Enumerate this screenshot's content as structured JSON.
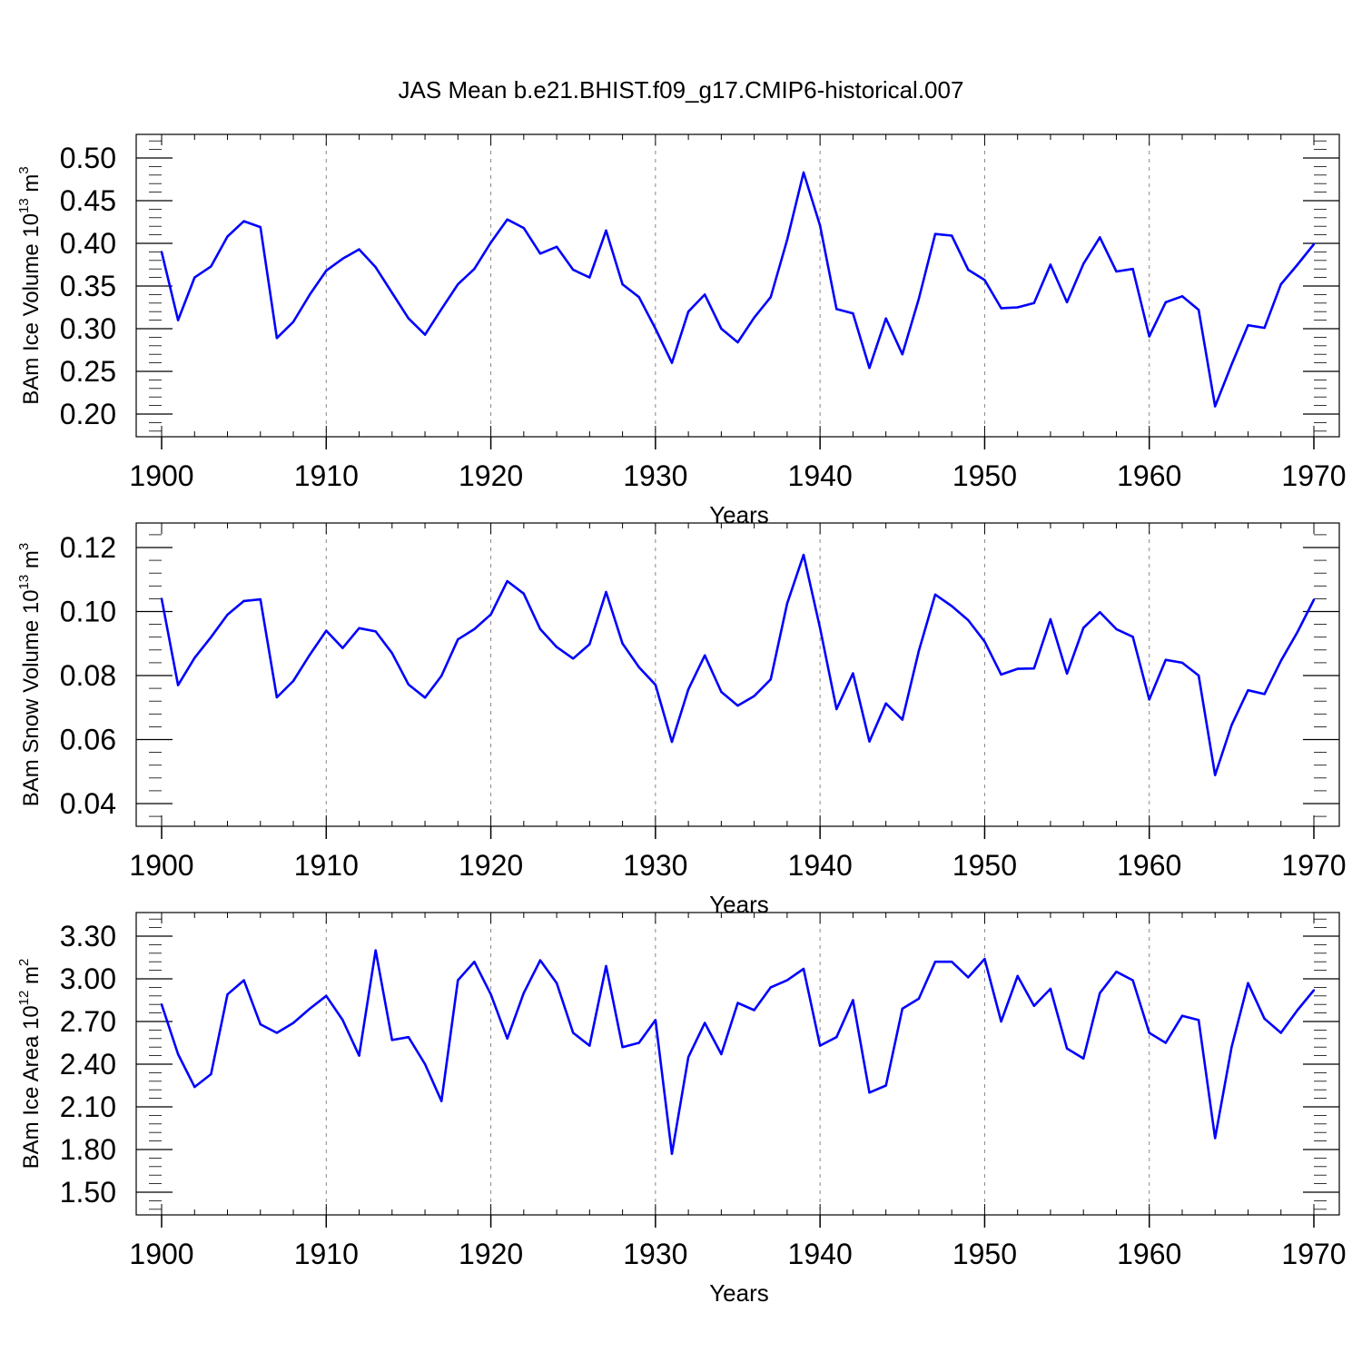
{
  "title": "JAS Mean b.e21.BHIST.f09_g17.CMIP6-historical.007",
  "line_color": "#0000ff",
  "chart_data": [
    {
      "type": "line",
      "ylabel": "BAm Ice Volume 10",
      "ylabel_sup": "13",
      "ylabel_unit": " m",
      "ylabel_unit_sup": "3",
      "xlabel": "Years",
      "xlim": [
        1900,
        1970
      ],
      "ylim": [
        0.2,
        0.5
      ],
      "yticks": [
        "0.20",
        "0.25",
        "0.30",
        "0.35",
        "0.40",
        "0.45",
        "0.50"
      ],
      "xticks": [
        "1900",
        "1910",
        "1920",
        "1930",
        "1940",
        "1950",
        "1960",
        "1970"
      ],
      "grid": "vertical dashed at decades",
      "x": [
        1900,
        1901,
        1902,
        1903,
        1904,
        1905,
        1906,
        1907,
        1908,
        1909,
        1910,
        1911,
        1912,
        1913,
        1914,
        1915,
        1916,
        1917,
        1918,
        1919,
        1920,
        1921,
        1922,
        1923,
        1924,
        1925,
        1926,
        1927,
        1928,
        1929,
        1930,
        1931,
        1932,
        1933,
        1934,
        1935,
        1936,
        1937,
        1938,
        1939,
        1940,
        1941,
        1942,
        1943,
        1944,
        1945,
        1946,
        1947,
        1948,
        1949,
        1950,
        1951,
        1952,
        1953,
        1954,
        1955,
        1956,
        1957,
        1958,
        1959,
        1960,
        1961,
        1962,
        1963,
        1964,
        1965,
        1966,
        1967,
        1968,
        1969,
        1970
      ],
      "values": [
        0.39,
        0.31,
        0.36,
        0.373,
        0.408,
        0.426,
        0.419,
        0.289,
        0.308,
        0.34,
        0.368,
        0.382,
        0.393,
        0.372,
        0.342,
        0.312,
        0.293,
        0.323,
        0.352,
        0.37,
        0.401,
        0.428,
        0.418,
        0.388,
        0.396,
        0.369,
        0.36,
        0.415,
        0.352,
        0.337,
        0.3,
        0.26,
        0.32,
        0.34,
        0.3,
        0.284,
        0.313,
        0.337,
        0.404,
        0.483,
        0.421,
        0.323,
        0.318,
        0.254,
        0.312,
        0.27,
        0.335,
        0.411,
        0.409,
        0.369,
        0.357,
        0.324,
        0.325,
        0.33,
        0.375,
        0.331,
        0.376,
        0.407,
        0.367,
        0.37,
        0.291,
        0.331,
        0.338,
        0.322,
        0.209,
        0.258,
        0.304,
        0.301,
        0.352,
        0.375,
        0.399
      ]
    },
    {
      "type": "line",
      "ylabel": "BAm Snow Volume 10",
      "ylabel_sup": "13",
      "ylabel_unit": " m",
      "ylabel_unit_sup": "3",
      "xlabel": "Years",
      "xlim": [
        1900,
        1970
      ],
      "ylim": [
        0.04,
        0.12
      ],
      "yticks": [
        "0.04",
        "0.06",
        "0.08",
        "0.10",
        "0.12"
      ],
      "xticks": [
        "1900",
        "1910",
        "1920",
        "1930",
        "1940",
        "1950",
        "1960",
        "1970"
      ],
      "grid": "vertical dashed at decades",
      "x": [
        1900,
        1901,
        1902,
        1903,
        1904,
        1905,
        1906,
        1907,
        1908,
        1909,
        1910,
        1911,
        1912,
        1913,
        1914,
        1915,
        1916,
        1917,
        1918,
        1919,
        1920,
        1921,
        1922,
        1923,
        1924,
        1925,
        1926,
        1927,
        1928,
        1929,
        1930,
        1931,
        1932,
        1933,
        1934,
        1935,
        1936,
        1937,
        1938,
        1939,
        1940,
        1941,
        1942,
        1943,
        1944,
        1945,
        1946,
        1947,
        1948,
        1949,
        1950,
        1951,
        1952,
        1953,
        1954,
        1955,
        1956,
        1957,
        1958,
        1959,
        1960,
        1961,
        1962,
        1963,
        1964,
        1965,
        1966,
        1967,
        1968,
        1969,
        1970
      ],
      "values": [
        0.104,
        0.077,
        0.0855,
        0.092,
        0.099,
        0.1033,
        0.1038,
        0.0732,
        0.0783,
        0.0865,
        0.094,
        0.0886,
        0.0948,
        0.0938,
        0.087,
        0.0772,
        0.0731,
        0.0799,
        0.0913,
        0.0945,
        0.0991,
        0.1095,
        0.1056,
        0.0945,
        0.0889,
        0.0853,
        0.0898,
        0.1061,
        0.09,
        0.0826,
        0.0771,
        0.0593,
        0.0757,
        0.0863,
        0.0749,
        0.0706,
        0.0736,
        0.0788,
        0.1025,
        0.1177,
        0.0949,
        0.0695,
        0.0807,
        0.0594,
        0.0713,
        0.0662,
        0.0877,
        0.1053,
        0.1017,
        0.0973,
        0.0906,
        0.0803,
        0.0821,
        0.0822,
        0.0976,
        0.0806,
        0.0949,
        0.0998,
        0.0945,
        0.0921,
        0.0725,
        0.0849,
        0.084,
        0.08,
        0.0489,
        0.0645,
        0.0754,
        0.0742,
        0.0846,
        0.0936,
        0.1037
      ]
    },
    {
      "type": "line",
      "ylabel": "BAm Ice Area 10",
      "ylabel_sup": "12",
      "ylabel_unit": " m",
      "ylabel_unit_sup": "2",
      "xlabel": "Years",
      "xlim": [
        1900,
        1970
      ],
      "ylim": [
        1.5,
        3.3
      ],
      "yticks": [
        "1.50",
        "1.80",
        "2.10",
        "2.40",
        "2.70",
        "3.00",
        "3.30"
      ],
      "xticks": [
        "1900",
        "1910",
        "1920",
        "1930",
        "1940",
        "1950",
        "1960",
        "1970"
      ],
      "grid": "vertical dashed at decades",
      "x": [
        1900,
        1901,
        1902,
        1903,
        1904,
        1905,
        1906,
        1907,
        1908,
        1909,
        1910,
        1911,
        1912,
        1913,
        1914,
        1915,
        1916,
        1917,
        1918,
        1919,
        1920,
        1921,
        1922,
        1923,
        1924,
        1925,
        1926,
        1927,
        1928,
        1929,
        1930,
        1931,
        1932,
        1933,
        1934,
        1935,
        1936,
        1937,
        1938,
        1939,
        1940,
        1941,
        1942,
        1943,
        1944,
        1945,
        1946,
        1947,
        1948,
        1949,
        1950,
        1951,
        1952,
        1953,
        1954,
        1955,
        1956,
        1957,
        1958,
        1959,
        1960,
        1961,
        1962,
        1963,
        1964,
        1965,
        1966,
        1967,
        1968,
        1969,
        1970
      ],
      "values": [
        2.82,
        2.47,
        2.24,
        2.33,
        2.89,
        2.99,
        2.68,
        2.62,
        2.69,
        2.79,
        2.88,
        2.71,
        2.46,
        3.2,
        2.57,
        2.59,
        2.4,
        2.14,
        2.99,
        3.12,
        2.89,
        2.58,
        2.9,
        3.13,
        2.97,
        2.62,
        2.53,
        3.09,
        2.52,
        2.55,
        2.71,
        1.77,
        2.45,
        2.69,
        2.47,
        2.83,
        2.78,
        2.94,
        2.99,
        3.07,
        2.53,
        2.59,
        2.85,
        2.2,
        2.25,
        2.79,
        2.86,
        3.12,
        3.12,
        3.01,
        3.14,
        2.7,
        3.02,
        2.81,
        2.93,
        2.51,
        2.44,
        2.9,
        3.05,
        2.99,
        2.62,
        2.55,
        2.74,
        2.71,
        1.88,
        2.52,
        2.97,
        2.72,
        2.62,
        2.78,
        2.92
      ]
    }
  ]
}
